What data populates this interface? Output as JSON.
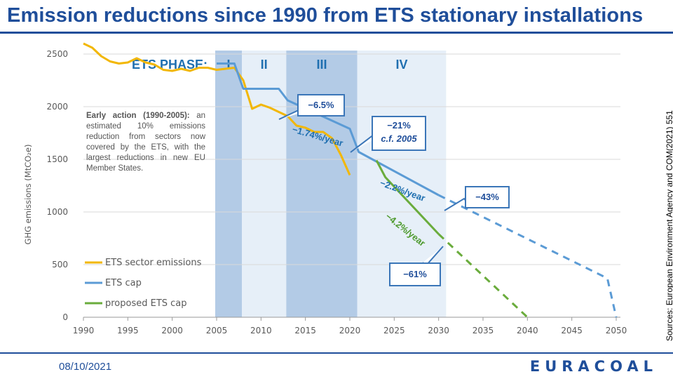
{
  "slide": {
    "title": "Emission reductions since 1990 from ETS stationary installations",
    "date": "08/10/2021",
    "logo": "EURACOAL",
    "sources": "Sources: European Environment  Agency and COM(2021) 551"
  },
  "note": {
    "heading": "Early action (1990-2005):",
    "body": "an estimated 10% emissions reduction from sectors now covered by the ETS, with the largest reductions in new EU Member States."
  },
  "callouts": {
    "c1": "−6.5%",
    "c2_line1": "−21%",
    "c2_line2": "c.f. 2005",
    "c3": "−43%",
    "c4": "−61%"
  },
  "chart_data": {
    "type": "line",
    "ylabel": "GHG emissions (MtCO₂e)",
    "xlim": [
      1990,
      2050
    ],
    "ylim": [
      0,
      2600
    ],
    "x_ticks": [
      1990,
      1995,
      2000,
      2005,
      2010,
      2015,
      2020,
      2025,
      2030,
      2035,
      2040,
      2045,
      2050
    ],
    "y_ticks": [
      0,
      500,
      1000,
      1500,
      2000,
      2500
    ],
    "grid": "horizontal",
    "phases": {
      "label": "ETS PHASE:",
      "items": [
        {
          "name": "I",
          "start": 2005,
          "end": 2008,
          "color": "#b3cbe6"
        },
        {
          "name": "II",
          "start": 2008,
          "end": 2013,
          "color": "#e6eff8"
        },
        {
          "name": "III",
          "start": 2013,
          "end": 2021,
          "color": "#b3cbe6"
        },
        {
          "name": "IV",
          "start": 2021,
          "end": 2031,
          "color": "#e6eff8"
        }
      ]
    },
    "annotations": [
      {
        "text": "−1.74%/year",
        "color": "#1f6fb0"
      },
      {
        "text": "−2.2%/year",
        "color": "#1f6fb0"
      },
      {
        "text": "−4.2%/year",
        "color": "#4e9a2e"
      }
    ],
    "series": [
      {
        "name": "ETS sector emissions",
        "color": "#f2b705",
        "points": [
          [
            1990,
            2600
          ],
          [
            1991,
            2560
          ],
          [
            1992,
            2480
          ],
          [
            1993,
            2430
          ],
          [
            1994,
            2410
          ],
          [
            1995,
            2420
          ],
          [
            1996,
            2460
          ],
          [
            1997,
            2420
          ],
          [
            1998,
            2400
          ],
          [
            1999,
            2350
          ],
          [
            2000,
            2340
          ],
          [
            2001,
            2360
          ],
          [
            2002,
            2340
          ],
          [
            2003,
            2370
          ],
          [
            2004,
            2370
          ],
          [
            2005,
            2350
          ],
          [
            2006,
            2360
          ],
          [
            2007,
            2370
          ],
          [
            2008,
            2250
          ],
          [
            2009,
            1980
          ],
          [
            2010,
            2020
          ],
          [
            2011,
            1990
          ],
          [
            2012,
            1950
          ],
          [
            2013,
            1910
          ],
          [
            2014,
            1820
          ],
          [
            2015,
            1800
          ],
          [
            2016,
            1760
          ],
          [
            2017,
            1760
          ],
          [
            2018,
            1700
          ],
          [
            2019,
            1540
          ],
          [
            2020,
            1350
          ]
        ]
      },
      {
        "name": "ETS cap",
        "color": "#5b9bd5",
        "points": [
          [
            2005,
            2410
          ],
          [
            2007,
            2410
          ],
          [
            2008,
            2170
          ],
          [
            2012,
            2170
          ],
          [
            2013,
            2060
          ],
          [
            2020,
            1790
          ],
          [
            2021,
            1570
          ],
          [
            2030,
            1160
          ]
        ],
        "dashed_points": [
          [
            2030,
            1160
          ],
          [
            2049,
            370
          ],
          [
            2050,
            0
          ]
        ]
      },
      {
        "name": "proposed ETS cap",
        "color": "#6aac3c",
        "points": [
          [
            2023,
            1490
          ],
          [
            2024,
            1330
          ],
          [
            2030,
            790
          ]
        ],
        "dashed_points": [
          [
            2030,
            790
          ],
          [
            2040,
            0
          ]
        ]
      }
    ]
  }
}
